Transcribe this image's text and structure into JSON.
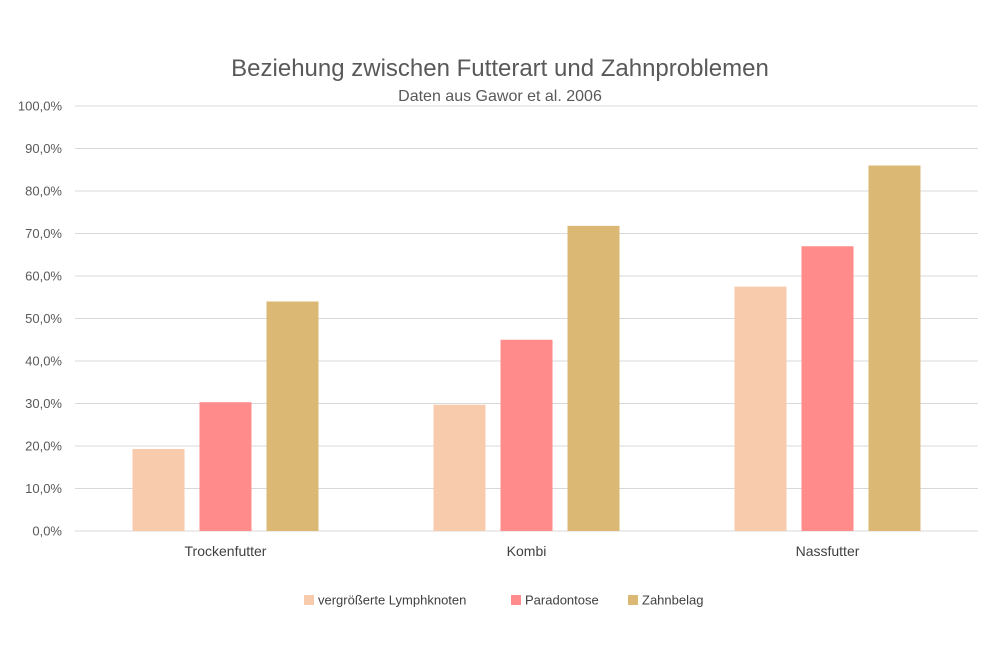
{
  "chart_data": {
    "type": "bar",
    "title": "Beziehung zwischen Futterart und Zahnproblemen",
    "subtitle": "Daten aus Gawor et al. 2006",
    "categories": [
      "Trockenfutter",
      "Kombi",
      "Nassfutter"
    ],
    "series": [
      {
        "name": "vergrößerte Lymphknoten",
        "color": "#f8cbad",
        "values": [
          19.3,
          29.7,
          57.5
        ]
      },
      {
        "name": "Paradontose",
        "color": "#ff8b8b",
        "values": [
          30.3,
          45.0,
          67.0
        ]
      },
      {
        "name": "Zahnbelag",
        "color": "#dbb874",
        "values": [
          54.0,
          71.8,
          86.0
        ]
      }
    ],
    "ylim": [
      0,
      100
    ],
    "yticks": [
      "0,0%",
      "10,0%",
      "20,0%",
      "30,0%",
      "40,0%",
      "50,0%",
      "60,0%",
      "70,0%",
      "80,0%",
      "90,0%",
      "100,0%"
    ],
    "grid": true,
    "legend_position": "bottom"
  }
}
